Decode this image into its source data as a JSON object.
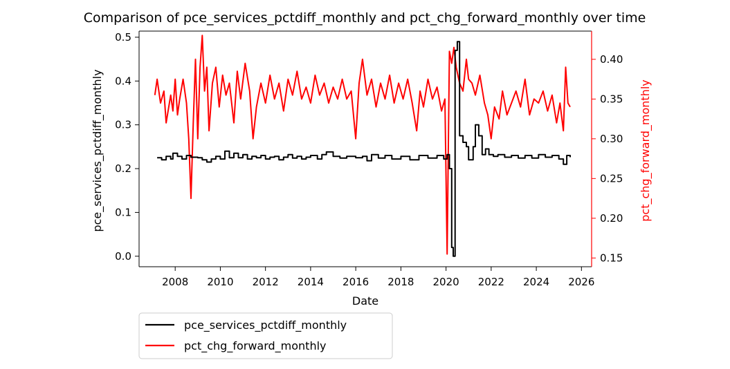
{
  "chart_data": {
    "type": "line",
    "title": "Comparison of pce_services_pctdiff_monthly and pct_chg_forward_monthly over time",
    "xlabel": "Date",
    "ylabel_left": "pce_services_pctdiff_monthly",
    "ylabel_right": "pct_chg_forward_monthly",
    "x_ticks": [
      "2008",
      "2010",
      "2012",
      "2014",
      "2016",
      "2018",
      "2020",
      "2022",
      "2024",
      "2026"
    ],
    "y_left_ticks": [
      "0.0",
      "0.1",
      "0.2",
      "0.3",
      "0.4",
      "0.5"
    ],
    "y_right_ticks": [
      "0.15",
      "0.20",
      "0.25",
      "0.30",
      "0.35",
      "0.40"
    ],
    "xlim": [
      2006.4,
      2026.45
    ],
    "ylim_left": [
      -0.024,
      0.514
    ],
    "ylim_right": [
      0.139,
      0.4355
    ],
    "legend_position": "below-left",
    "colors": {
      "left": "#000000",
      "right": "#ff0000",
      "right_axis": "#ff0000"
    },
    "series": [
      {
        "name": "pce_services_pctdiff_monthly",
        "axis": "left",
        "color": "#000000",
        "step": true,
        "points": [
          [
            2007.2,
            0.225
          ],
          [
            2007.4,
            0.22
          ],
          [
            2007.6,
            0.228
          ],
          [
            2007.8,
            0.222
          ],
          [
            2007.9,
            0.235
          ],
          [
            2008.1,
            0.228
          ],
          [
            2008.3,
            0.222
          ],
          [
            2008.5,
            0.23
          ],
          [
            2008.7,
            0.226
          ],
          [
            2009.0,
            0.225
          ],
          [
            2009.2,
            0.22
          ],
          [
            2009.4,
            0.215
          ],
          [
            2009.6,
            0.222
          ],
          [
            2009.8,
            0.228
          ],
          [
            2010.0,
            0.222
          ],
          [
            2010.2,
            0.24
          ],
          [
            2010.4,
            0.225
          ],
          [
            2010.6,
            0.235
          ],
          [
            2010.8,
            0.225
          ],
          [
            2011.0,
            0.232
          ],
          [
            2011.2,
            0.222
          ],
          [
            2011.4,
            0.228
          ],
          [
            2011.6,
            0.225
          ],
          [
            2011.8,
            0.23
          ],
          [
            2012.0,
            0.222
          ],
          [
            2012.2,
            0.226
          ],
          [
            2012.4,
            0.228
          ],
          [
            2012.6,
            0.22
          ],
          [
            2012.8,
            0.226
          ],
          [
            2013.0,
            0.232
          ],
          [
            2013.2,
            0.224
          ],
          [
            2013.4,
            0.228
          ],
          [
            2013.6,
            0.222
          ],
          [
            2013.8,
            0.226
          ],
          [
            2014.0,
            0.23
          ],
          [
            2014.3,
            0.222
          ],
          [
            2014.5,
            0.232
          ],
          [
            2014.7,
            0.238
          ],
          [
            2015.0,
            0.228
          ],
          [
            2015.3,
            0.224
          ],
          [
            2015.6,
            0.228
          ],
          [
            2016.0,
            0.225
          ],
          [
            2016.3,
            0.228
          ],
          [
            2016.5,
            0.218
          ],
          [
            2016.7,
            0.232
          ],
          [
            2017.0,
            0.224
          ],
          [
            2017.3,
            0.23
          ],
          [
            2017.6,
            0.222
          ],
          [
            2018.0,
            0.228
          ],
          [
            2018.4,
            0.22
          ],
          [
            2018.8,
            0.23
          ],
          [
            2019.2,
            0.224
          ],
          [
            2019.6,
            0.23
          ],
          [
            2019.9,
            0.222
          ],
          [
            2020.05,
            0.232
          ],
          [
            2020.15,
            0.2
          ],
          [
            2020.25,
            0.02
          ],
          [
            2020.32,
            0.0
          ],
          [
            2020.4,
            0.47
          ],
          [
            2020.5,
            0.49
          ],
          [
            2020.6,
            0.275
          ],
          [
            2020.75,
            0.26
          ],
          [
            2020.9,
            0.25
          ],
          [
            2021.0,
            0.22
          ],
          [
            2021.2,
            0.25
          ],
          [
            2021.3,
            0.3
          ],
          [
            2021.45,
            0.275
          ],
          [
            2021.6,
            0.232
          ],
          [
            2021.75,
            0.245
          ],
          [
            2021.9,
            0.232
          ],
          [
            2022.1,
            0.228
          ],
          [
            2022.3,
            0.232
          ],
          [
            2022.6,
            0.226
          ],
          [
            2022.9,
            0.23
          ],
          [
            2023.2,
            0.224
          ],
          [
            2023.5,
            0.23
          ],
          [
            2023.8,
            0.224
          ],
          [
            2024.1,
            0.232
          ],
          [
            2024.4,
            0.226
          ],
          [
            2024.7,
            0.23
          ],
          [
            2025.0,
            0.222
          ],
          [
            2025.2,
            0.21
          ],
          [
            2025.35,
            0.23
          ],
          [
            2025.5,
            0.226
          ]
        ]
      },
      {
        "name": "pct_chg_forward_monthly",
        "axis": "right",
        "color": "#ff0000",
        "step": false,
        "points": [
          [
            2007.1,
            0.355
          ],
          [
            2007.2,
            0.375
          ],
          [
            2007.35,
            0.345
          ],
          [
            2007.5,
            0.36
          ],
          [
            2007.6,
            0.32
          ],
          [
            2007.8,
            0.355
          ],
          [
            2007.9,
            0.335
          ],
          [
            2008.0,
            0.375
          ],
          [
            2008.1,
            0.33
          ],
          [
            2008.2,
            0.35
          ],
          [
            2008.35,
            0.375
          ],
          [
            2008.5,
            0.345
          ],
          [
            2008.6,
            0.3
          ],
          [
            2008.7,
            0.225
          ],
          [
            2008.8,
            0.32
          ],
          [
            2008.9,
            0.4
          ],
          [
            2009.0,
            0.3
          ],
          [
            2009.1,
            0.39
          ],
          [
            2009.2,
            0.43
          ],
          [
            2009.3,
            0.36
          ],
          [
            2009.4,
            0.39
          ],
          [
            2009.5,
            0.31
          ],
          [
            2009.65,
            0.37
          ],
          [
            2009.8,
            0.39
          ],
          [
            2009.95,
            0.34
          ],
          [
            2010.1,
            0.38
          ],
          [
            2010.25,
            0.355
          ],
          [
            2010.4,
            0.37
          ],
          [
            2010.6,
            0.32
          ],
          [
            2010.75,
            0.385
          ],
          [
            2010.9,
            0.35
          ],
          [
            2011.1,
            0.395
          ],
          [
            2011.3,
            0.36
          ],
          [
            2011.45,
            0.3
          ],
          [
            2011.6,
            0.34
          ],
          [
            2011.8,
            0.37
          ],
          [
            2012.0,
            0.345
          ],
          [
            2012.2,
            0.38
          ],
          [
            2012.4,
            0.35
          ],
          [
            2012.6,
            0.37
          ],
          [
            2012.8,
            0.335
          ],
          [
            2013.0,
            0.375
          ],
          [
            2013.2,
            0.355
          ],
          [
            2013.4,
            0.385
          ],
          [
            2013.6,
            0.35
          ],
          [
            2013.8,
            0.365
          ],
          [
            2014.0,
            0.345
          ],
          [
            2014.2,
            0.38
          ],
          [
            2014.4,
            0.355
          ],
          [
            2014.6,
            0.37
          ],
          [
            2014.8,
            0.345
          ],
          [
            2015.0,
            0.365
          ],
          [
            2015.2,
            0.35
          ],
          [
            2015.4,
            0.375
          ],
          [
            2015.6,
            0.35
          ],
          [
            2015.8,
            0.36
          ],
          [
            2016.0,
            0.3
          ],
          [
            2016.15,
            0.37
          ],
          [
            2016.3,
            0.4
          ],
          [
            2016.5,
            0.355
          ],
          [
            2016.7,
            0.375
          ],
          [
            2016.9,
            0.34
          ],
          [
            2017.1,
            0.37
          ],
          [
            2017.3,
            0.35
          ],
          [
            2017.5,
            0.38
          ],
          [
            2017.7,
            0.345
          ],
          [
            2017.9,
            0.37
          ],
          [
            2018.1,
            0.35
          ],
          [
            2018.3,
            0.375
          ],
          [
            2018.5,
            0.345
          ],
          [
            2018.7,
            0.31
          ],
          [
            2018.85,
            0.36
          ],
          [
            2019.0,
            0.34
          ],
          [
            2019.2,
            0.375
          ],
          [
            2019.4,
            0.35
          ],
          [
            2019.6,
            0.365
          ],
          [
            2019.8,
            0.335
          ],
          [
            2019.95,
            0.35
          ],
          [
            2020.05,
            0.155
          ],
          [
            2020.15,
            0.41
          ],
          [
            2020.25,
            0.395
          ],
          [
            2020.35,
            0.415
          ],
          [
            2020.45,
            0.39
          ],
          [
            2020.6,
            0.37
          ],
          [
            2020.75,
            0.36
          ],
          [
            2020.9,
            0.4
          ],
          [
            2021.0,
            0.375
          ],
          [
            2021.15,
            0.37
          ],
          [
            2021.3,
            0.355
          ],
          [
            2021.5,
            0.38
          ],
          [
            2021.7,
            0.345
          ],
          [
            2021.85,
            0.33
          ],
          [
            2022.0,
            0.3
          ],
          [
            2022.15,
            0.34
          ],
          [
            2022.35,
            0.325
          ],
          [
            2022.5,
            0.36
          ],
          [
            2022.7,
            0.33
          ],
          [
            2022.9,
            0.345
          ],
          [
            2023.1,
            0.36
          ],
          [
            2023.3,
            0.34
          ],
          [
            2023.5,
            0.375
          ],
          [
            2023.7,
            0.33
          ],
          [
            2023.9,
            0.35
          ],
          [
            2024.1,
            0.345
          ],
          [
            2024.3,
            0.36
          ],
          [
            2024.5,
            0.335
          ],
          [
            2024.7,
            0.355
          ],
          [
            2024.9,
            0.32
          ],
          [
            2025.05,
            0.345
          ],
          [
            2025.2,
            0.31
          ],
          [
            2025.3,
            0.39
          ],
          [
            2025.4,
            0.345
          ],
          [
            2025.5,
            0.34
          ]
        ]
      }
    ]
  }
}
